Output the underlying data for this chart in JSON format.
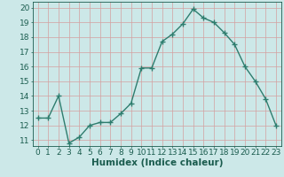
{
  "x": [
    0,
    1,
    2,
    3,
    4,
    5,
    6,
    7,
    8,
    9,
    10,
    11,
    12,
    13,
    14,
    15,
    16,
    17,
    18,
    19,
    20,
    21,
    22,
    23
  ],
  "y": [
    12.5,
    12.5,
    14.0,
    10.8,
    11.2,
    12.0,
    12.2,
    12.2,
    12.8,
    13.5,
    15.9,
    15.9,
    17.7,
    18.2,
    18.9,
    19.9,
    19.3,
    19.0,
    18.3,
    17.5,
    16.0,
    15.0,
    13.8,
    12.0
  ],
  "line_color": "#2e7d6e",
  "marker": "+",
  "marker_size": 4,
  "bg_color": "#cce8e8",
  "grid_color": "#d4a0a0",
  "xlabel": "Humidex (Indice chaleur)",
  "xlabel_fontsize": 7.5,
  "ylabel_ticks": [
    11,
    12,
    13,
    14,
    15,
    16,
    17,
    18,
    19,
    20
  ],
  "ylim": [
    10.6,
    20.4
  ],
  "xlim": [
    -0.5,
    23.5
  ],
  "tick_fontsize": 6.5,
  "line_width": 1.0,
  "axes_color": "#1a5c4e"
}
